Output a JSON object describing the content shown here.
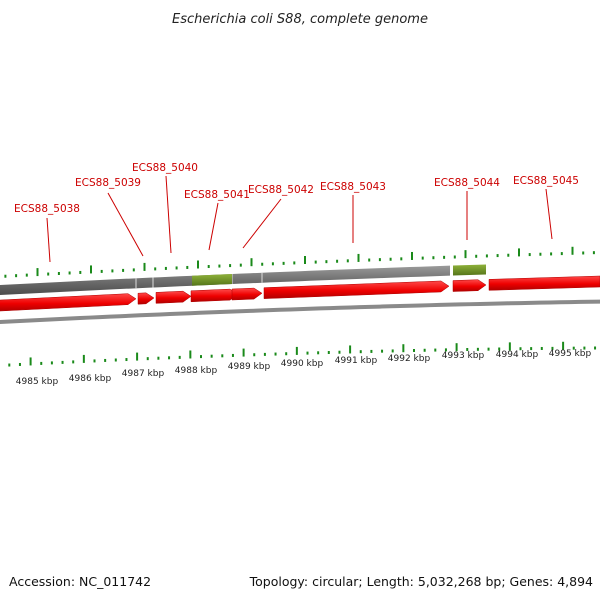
{
  "title": "Escherichia coli S88, complete genome",
  "footer": {
    "accession": "Accession: NC_011742",
    "info": "Topology: circular; Length: 5,032,268 bp; Genes: 4,894"
  },
  "colors": {
    "cds": "#ee0000",
    "cds_dark": "#b00000",
    "backbone": "#6e6e6e",
    "highlight": "#6a8c1e",
    "tick": "#1a8a1a",
    "label": "#cc0000"
  },
  "kbp_labels": [
    "4985 kbp",
    "4986 kbp",
    "4987 kbp",
    "4988 kbp",
    "4989 kbp",
    "4990 kbp",
    "4991 kbp",
    "4992 kbp",
    "4993 kbp",
    "4994 kbp",
    "4995 kbp"
  ],
  "gene_labels": [
    "ECS88_5038",
    "ECS88_5039",
    "ECS88_5040",
    "ECS88_5041",
    "ECS88_5042",
    "ECS88_5043",
    "ECS88_5044",
    "ECS88_5045"
  ]
}
